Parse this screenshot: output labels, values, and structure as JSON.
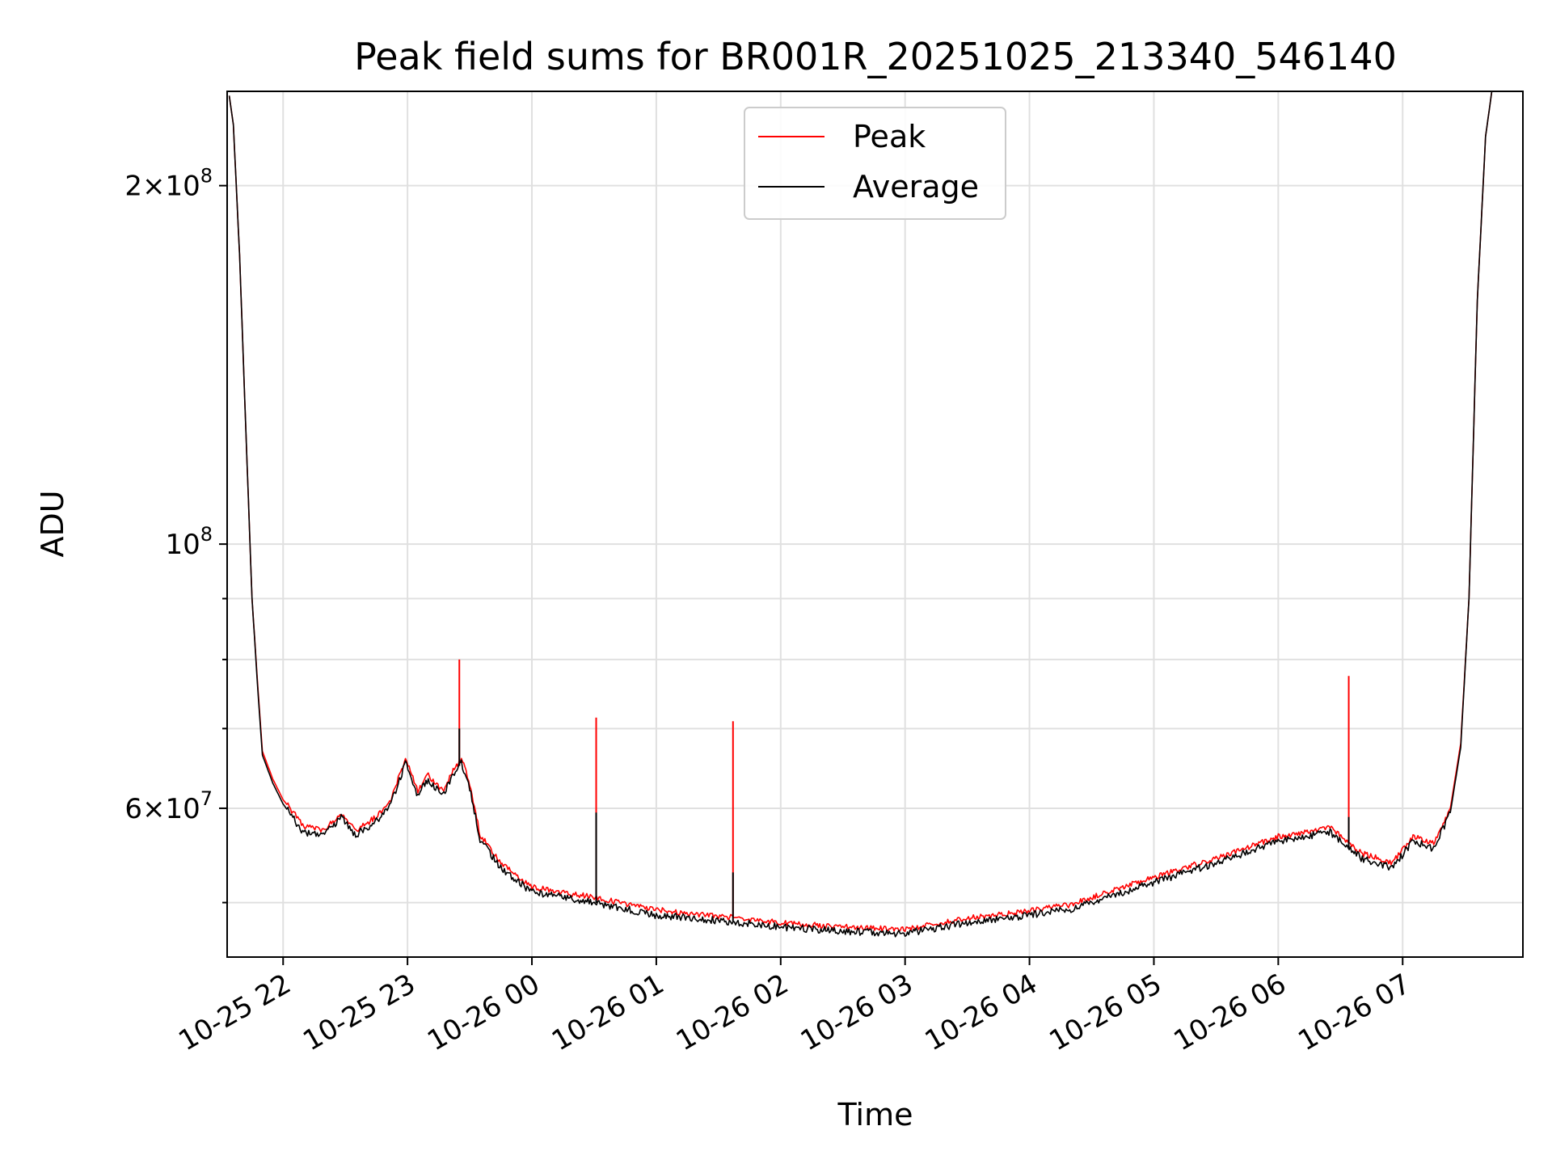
{
  "chart_data": {
    "type": "line",
    "title": "Peak field sums for BR001R_20251025_213340_546140",
    "xlabel": "Time",
    "ylabel": "ADU",
    "y_scale": "log",
    "grid": true,
    "legend_placement": "top-center",
    "xlim": [
      "2025-10-25 21:33",
      "2025-10-26 07:58"
    ],
    "ylim": [
      45000000,
      240000000
    ],
    "x_ticks": [
      {
        "t": "2025-10-25 22:00",
        "label": "10-25 22"
      },
      {
        "t": "2025-10-25 23:00",
        "label": "10-25 23"
      },
      {
        "t": "2025-10-26 00:00",
        "label": "10-26 00"
      },
      {
        "t": "2025-10-26 01:00",
        "label": "10-26 01"
      },
      {
        "t": "2025-10-26 02:00",
        "label": "10-26 02"
      },
      {
        "t": "2025-10-26 03:00",
        "label": "10-26 03"
      },
      {
        "t": "2025-10-26 04:00",
        "label": "10-26 04"
      },
      {
        "t": "2025-10-26 05:00",
        "label": "10-26 05"
      },
      {
        "t": "2025-10-26 06:00",
        "label": "10-26 06"
      },
      {
        "t": "2025-10-26 07:00",
        "label": "10-26 07"
      }
    ],
    "y_major_ticks": [
      {
        "value": 60000000,
        "base": "6",
        "exp": "7"
      },
      {
        "value": 100000000,
        "base": "",
        "exp": "8"
      },
      {
        "value": 200000000,
        "base": "2",
        "exp": "8"
      }
    ],
    "y_minor_ticks": [
      50000000,
      70000000,
      80000000,
      90000000
    ],
    "series": [
      {
        "name": "Peak",
        "color": "#ff0000",
        "points": [
          [
            "2025-10-25 21:34",
            238000000
          ],
          [
            "2025-10-25 21:36",
            225000000
          ],
          [
            "2025-10-25 21:39",
            175000000
          ],
          [
            "2025-10-25 21:42",
            125000000
          ],
          [
            "2025-10-25 21:45",
            90000000
          ],
          [
            "2025-10-25 21:48",
            75000000
          ],
          [
            "2025-10-25 21:50",
            67000000
          ],
          [
            "2025-10-25 21:55",
            63500000
          ],
          [
            "2025-10-25 22:00",
            61000000
          ],
          [
            "2025-10-25 22:10",
            58000000
          ],
          [
            "2025-10-25 22:20",
            57500000
          ],
          [
            "2025-10-25 22:28",
            59500000
          ],
          [
            "2025-10-25 22:35",
            57500000
          ],
          [
            "2025-10-25 22:45",
            59000000
          ],
          [
            "2025-10-25 22:52",
            61000000
          ],
          [
            "2025-10-25 22:59",
            66000000
          ],
          [
            "2025-10-25 23:05",
            62000000
          ],
          [
            "2025-10-25 23:10",
            64000000
          ],
          [
            "2025-10-25 23:17",
            62000000
          ],
          [
            "2025-10-25 23:22",
            64500000
          ],
          [
            "2025-10-25 23:26",
            66000000
          ],
          [
            "2025-10-25 23:30",
            63000000
          ],
          [
            "2025-10-25 23:35",
            57000000
          ],
          [
            "2025-10-25 23:45",
            54000000
          ],
          [
            "2025-10-26 00:00",
            51500000
          ],
          [
            "2025-10-26 00:30",
            50500000
          ],
          [
            "2025-10-26 01:00",
            49300000
          ],
          [
            "2025-10-26 01:30",
            48700000
          ],
          [
            "2025-10-26 02:00",
            48100000
          ],
          [
            "2025-10-26 02:30",
            47700000
          ],
          [
            "2025-10-26 03:00",
            47500000
          ],
          [
            "2025-10-26 03:30",
            48500000
          ],
          [
            "2025-10-26 04:00",
            49200000
          ],
          [
            "2025-10-26 04:20",
            49800000
          ],
          [
            "2025-10-26 04:45",
            51500000
          ],
          [
            "2025-10-26 05:00",
            52500000
          ],
          [
            "2025-10-26 05:30",
            54500000
          ],
          [
            "2025-10-26 06:00",
            56800000
          ],
          [
            "2025-10-26 06:25",
            57800000
          ],
          [
            "2025-10-26 06:40",
            55000000
          ],
          [
            "2025-10-26 06:55",
            54000000
          ],
          [
            "2025-10-26 07:05",
            56800000
          ],
          [
            "2025-10-26 07:15",
            56000000
          ],
          [
            "2025-10-26 07:23",
            60000000
          ],
          [
            "2025-10-26 07:28",
            68000000
          ],
          [
            "2025-10-26 07:32",
            90000000
          ],
          [
            "2025-10-26 07:36",
            160000000
          ],
          [
            "2025-10-26 07:40",
            220000000
          ],
          [
            "2025-10-26 07:43",
            240000000
          ]
        ],
        "spikes": [
          {
            "t": "2025-10-25 23:25",
            "value": 80000000
          },
          {
            "t": "2025-10-26 00:31",
            "value": 71500000
          },
          {
            "t": "2025-10-26 01:37",
            "value": 71000000
          },
          {
            "t": "2025-10-26 06:34",
            "value": 77500000
          }
        ]
      },
      {
        "name": "Average",
        "color": "#000000",
        "points": [
          [
            "2025-10-25 21:34",
            238000000
          ],
          [
            "2025-10-25 21:36",
            225000000
          ],
          [
            "2025-10-25 21:39",
            175000000
          ],
          [
            "2025-10-25 21:42",
            125000000
          ],
          [
            "2025-10-25 21:45",
            90000000
          ],
          [
            "2025-10-25 21:48",
            74500000
          ],
          [
            "2025-10-25 21:50",
            66500000
          ],
          [
            "2025-10-25 21:55",
            63000000
          ],
          [
            "2025-10-25 22:00",
            60500000
          ],
          [
            "2025-10-25 22:10",
            57200000
          ],
          [
            "2025-10-25 22:20",
            57000000
          ],
          [
            "2025-10-25 22:28",
            59000000
          ],
          [
            "2025-10-25 22:35",
            57000000
          ],
          [
            "2025-10-25 22:45",
            58500000
          ],
          [
            "2025-10-25 22:52",
            60500000
          ],
          [
            "2025-10-25 22:59",
            65500000
          ],
          [
            "2025-10-25 23:05",
            61500000
          ],
          [
            "2025-10-25 23:10",
            63500000
          ],
          [
            "2025-10-25 23:17",
            61500000
          ],
          [
            "2025-10-25 23:22",
            64000000
          ],
          [
            "2025-10-25 23:26",
            65500000
          ],
          [
            "2025-10-25 23:30",
            62500000
          ],
          [
            "2025-10-25 23:35",
            56500000
          ],
          [
            "2025-10-25 23:45",
            53500000
          ],
          [
            "2025-10-26 00:00",
            51000000
          ],
          [
            "2025-10-26 00:30",
            50000000
          ],
          [
            "2025-10-26 01:00",
            48800000
          ],
          [
            "2025-10-26 01:30",
            48300000
          ],
          [
            "2025-10-26 02:00",
            47700000
          ],
          [
            "2025-10-26 02:30",
            47300000
          ],
          [
            "2025-10-26 03:00",
            47100000
          ],
          [
            "2025-10-26 03:30",
            48100000
          ],
          [
            "2025-10-26 04:00",
            48800000
          ],
          [
            "2025-10-26 04:20",
            49400000
          ],
          [
            "2025-10-26 04:45",
            51000000
          ],
          [
            "2025-10-26 05:00",
            52000000
          ],
          [
            "2025-10-26 05:30",
            54000000
          ],
          [
            "2025-10-26 06:00",
            56300000
          ],
          [
            "2025-10-26 06:25",
            57300000
          ],
          [
            "2025-10-26 06:40",
            54500000
          ],
          [
            "2025-10-26 06:55",
            53500000
          ],
          [
            "2025-10-26 07:05",
            56300000
          ],
          [
            "2025-10-26 07:15",
            55500000
          ],
          [
            "2025-10-26 07:23",
            59500000
          ],
          [
            "2025-10-26 07:28",
            67500000
          ],
          [
            "2025-10-26 07:32",
            90000000
          ],
          [
            "2025-10-26 07:36",
            160000000
          ],
          [
            "2025-10-26 07:40",
            220000000
          ],
          [
            "2025-10-26 07:43",
            240000000
          ]
        ],
        "spikes": [
          {
            "t": "2025-10-25 23:25",
            "value": 70000000
          },
          {
            "t": "2025-10-26 00:31",
            "value": 59500000
          },
          {
            "t": "2025-10-26 01:37",
            "value": 53000000
          },
          {
            "t": "2025-10-26 06:34",
            "value": 59000000
          }
        ]
      }
    ]
  }
}
